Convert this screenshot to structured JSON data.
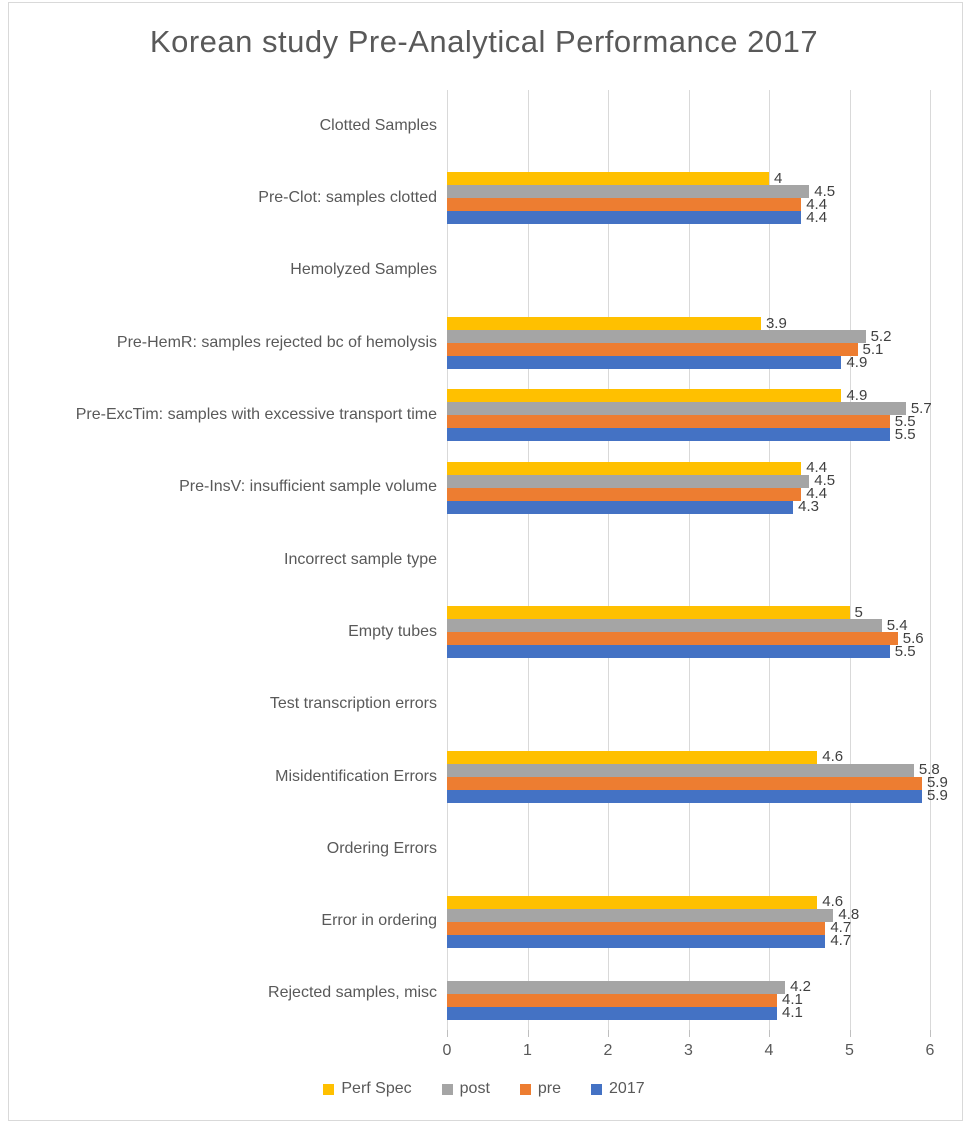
{
  "title": "Korean study Pre-Analytical Performance 2017",
  "chart_data": {
    "type": "bar",
    "orientation": "horizontal",
    "title": "Korean study Pre-Analytical Performance 2017",
    "categories": [
      "Clotted Samples",
      "Pre-Clot: samples clotted",
      "Hemolyzed Samples",
      "Pre-HemR: samples rejected bc of hemolysis",
      "Pre-ExcTim: samples with excessive transport time",
      "Pre-InsV: insufficient sample volume",
      "Incorrect sample type",
      "Empty tubes",
      "Test transcription errors",
      "Misidentification Errors",
      "Ordering Errors",
      "Error in ordering",
      "Rejected samples, misc"
    ],
    "series": [
      {
        "name": "Perf Spec",
        "color": "#FFC000",
        "values": [
          null,
          4,
          null,
          3.9,
          4.9,
          4.4,
          null,
          5,
          null,
          4.6,
          null,
          4.6,
          null
        ]
      },
      {
        "name": "post",
        "color": "#A5A5A5",
        "values": [
          null,
          4.5,
          null,
          5.2,
          5.7,
          4.5,
          null,
          5.4,
          null,
          5.8,
          null,
          4.8,
          4.2
        ]
      },
      {
        "name": "pre",
        "color": "#ED7D31",
        "values": [
          null,
          4.4,
          null,
          5.1,
          5.5,
          4.4,
          null,
          5.6,
          null,
          5.9,
          null,
          4.7,
          4.1
        ]
      },
      {
        "name": "2017",
        "color": "#4472C4",
        "values": [
          null,
          4.4,
          null,
          4.9,
          5.5,
          4.3,
          null,
          5.5,
          null,
          5.9,
          null,
          4.7,
          4.1
        ]
      }
    ],
    "xlim": [
      0,
      6
    ],
    "x_ticks": [
      "0",
      "1",
      "2",
      "3",
      "4",
      "5",
      "6"
    ],
    "grid": true,
    "data_labels": true,
    "legend_position": "bottom"
  },
  "colors": {
    "grid": "#D9D9D9",
    "frame_border": "#D9D9D9",
    "axis_tick": "#BFBFBF",
    "title_text": "#595959",
    "axis_text": "#595959",
    "data_label_text": "#404040"
  }
}
